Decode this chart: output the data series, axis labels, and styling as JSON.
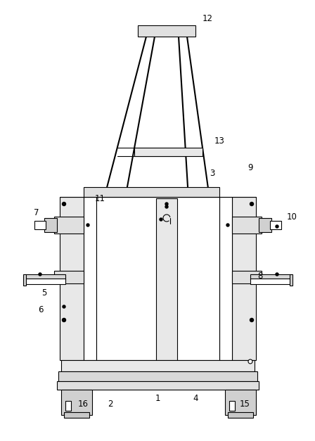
{
  "bg_color": "#ffffff",
  "line_color": "#000000",
  "lw": 0.8,
  "tlw": 1.5,
  "figsize": [
    4.48,
    6.27
  ],
  "dpi": 100
}
